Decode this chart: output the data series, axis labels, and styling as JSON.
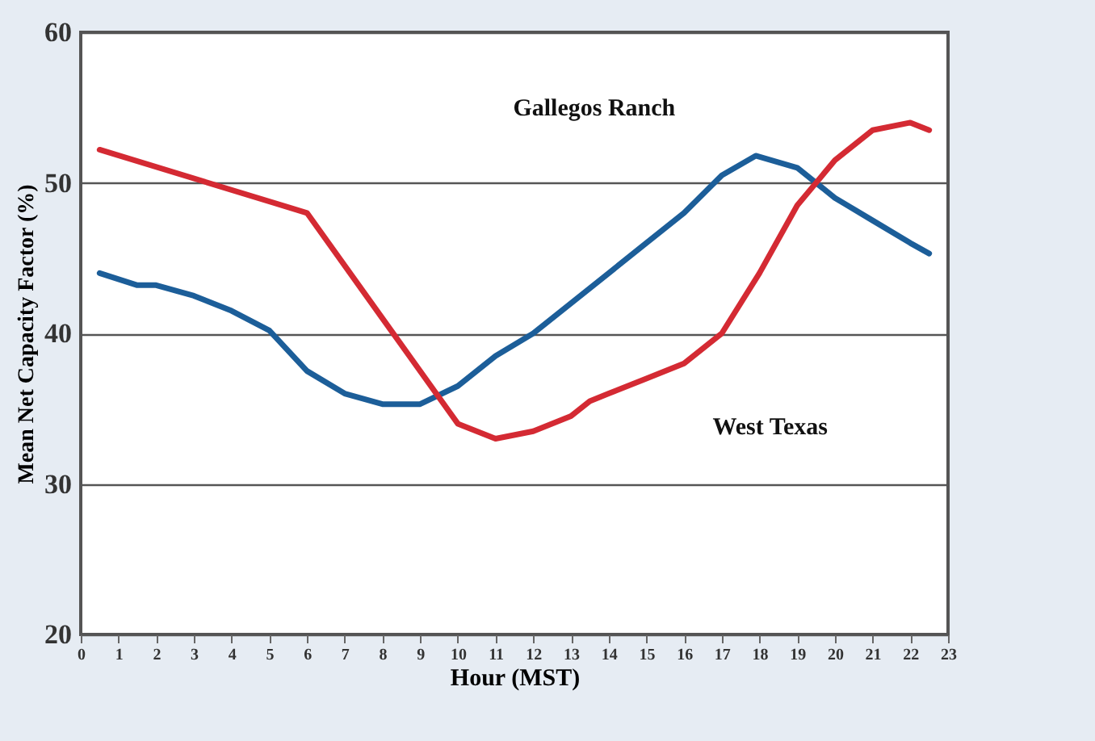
{
  "chart_data": {
    "type": "line",
    "xlabel": "Hour (MST)",
    "ylabel": "Mean Net Capacity Factor (%)",
    "xlim": [
      0,
      23
    ],
    "xticks": [
      0,
      1,
      2,
      3,
      4,
      5,
      6,
      7,
      8,
      9,
      10,
      11,
      12,
      13,
      14,
      15,
      16,
      17,
      18,
      19,
      20,
      21,
      22,
      23
    ],
    "ylim": [
      20,
      60
    ],
    "yticks": [
      20,
      30,
      40,
      50,
      60
    ],
    "grid": "y",
    "line_style": "solid",
    "series": [
      {
        "name": "Gallegos Ranch",
        "color": "#1c5e99",
        "x": [
          0.5,
          1.5,
          2,
          3,
          4,
          5,
          6,
          7,
          8,
          9,
          10,
          11,
          12,
          13,
          14,
          15,
          16,
          17,
          17.9,
          19,
          20,
          21,
          22,
          22.5
        ],
        "values": [
          44,
          43.2,
          43.2,
          42.5,
          41.5,
          40.2,
          37.5,
          36,
          35.3,
          35.3,
          36.5,
          38.5,
          40,
          42,
          44,
          46,
          48,
          50.5,
          51.8,
          51,
          49,
          47.5,
          46,
          45.3
        ]
      },
      {
        "name": "West Texas",
        "color": "#d42a33",
        "x": [
          0.5,
          6,
          8,
          10,
          11,
          12,
          13,
          13.5,
          14,
          15,
          16,
          17,
          18,
          19,
          20,
          21,
          22,
          22.5
        ],
        "values": [
          52.2,
          48,
          41,
          34,
          33,
          33.5,
          34.5,
          35.5,
          36,
          37,
          38,
          40,
          44,
          48.5,
          51.5,
          53.5,
          54,
          53.5
        ]
      }
    ]
  }
}
